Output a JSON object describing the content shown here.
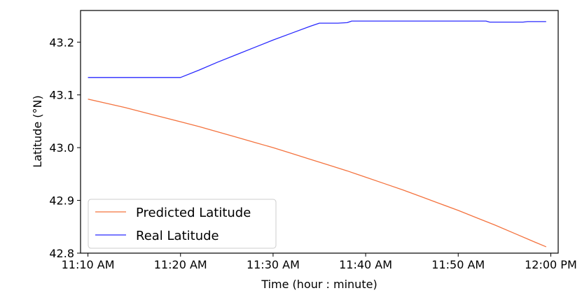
{
  "chart_data": {
    "type": "line",
    "title": "",
    "xlabel": "Time (hour : minute)",
    "ylabel": "Latitude ($^\\circ$N)",
    "ylabel_display": "Latitude (°N)",
    "x_tick_labels": [
      "11:10 AM",
      "11:20 AM",
      "11:30 AM",
      "11:40 AM",
      "11:50 AM",
      "12:00 PM"
    ],
    "x_tick_minutes": [
      670,
      680,
      690,
      700,
      710,
      720
    ],
    "xlim_minutes": [
      669.2,
      720.8
    ],
    "y_ticks": [
      42.8,
      42.9,
      43.0,
      43.1,
      43.2
    ],
    "y_tick_labels": [
      "42.8",
      "42.9",
      "43.0",
      "43.1",
      "43.2"
    ],
    "ylim": [
      42.8,
      43.26
    ],
    "grid": false,
    "legend_position": "lower-left",
    "series": [
      {
        "name": "Predicted Latitude",
        "color": "#f4733f",
        "points_minutes": [
          [
            670,
            43.092
          ],
          [
            672,
            43.084
          ],
          [
            674,
            43.076
          ],
          [
            676,
            43.067
          ],
          [
            678,
            43.058
          ],
          [
            680,
            43.049
          ],
          [
            682,
            43.04
          ],
          [
            684,
            43.03
          ],
          [
            686,
            43.02
          ],
          [
            688,
            43.01
          ],
          [
            690,
            43.0
          ],
          [
            692,
            42.989
          ],
          [
            694,
            42.978
          ],
          [
            696,
            42.967
          ],
          [
            698,
            42.956
          ],
          [
            700,
            42.944
          ],
          [
            702,
            42.932
          ],
          [
            704,
            42.92
          ],
          [
            706,
            42.907
          ],
          [
            708,
            42.894
          ],
          [
            710,
            42.881
          ],
          [
            712,
            42.867
          ],
          [
            714,
            42.853
          ],
          [
            716,
            42.838
          ],
          [
            718,
            42.823
          ],
          [
            719.5,
            42.812
          ]
        ]
      },
      {
        "name": "Real Latitude",
        "color": "#2a2aff",
        "points_minutes": [
          [
            670,
            43.133
          ],
          [
            672,
            43.133
          ],
          [
            674,
            43.133
          ],
          [
            676,
            43.133
          ],
          [
            678,
            43.133
          ],
          [
            680,
            43.133
          ],
          [
            682,
            43.147
          ],
          [
            684,
            43.162
          ],
          [
            686,
            43.176
          ],
          [
            688,
            43.19
          ],
          [
            690,
            43.204
          ],
          [
            692,
            43.217
          ],
          [
            694,
            43.23
          ],
          [
            695,
            43.236
          ],
          [
            696,
            43.236
          ],
          [
            697,
            43.236
          ],
          [
            698,
            43.237
          ],
          [
            698.5,
            43.24
          ],
          [
            700,
            43.24
          ],
          [
            702,
            43.24
          ],
          [
            704,
            43.24
          ],
          [
            706,
            43.24
          ],
          [
            708,
            43.24
          ],
          [
            710,
            43.24
          ],
          [
            712,
            43.24
          ],
          [
            713,
            43.24
          ],
          [
            713.4,
            43.238
          ],
          [
            714,
            43.238
          ],
          [
            716,
            43.238
          ],
          [
            717,
            43.238
          ],
          [
            717.5,
            43.239
          ],
          [
            719.5,
            43.239
          ]
        ]
      }
    ]
  }
}
